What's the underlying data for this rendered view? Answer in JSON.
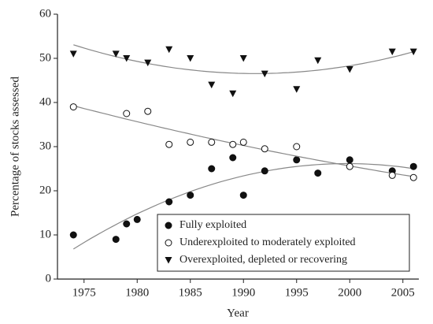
{
  "chart_data": {
    "type": "scatter",
    "xlabel": "Year",
    "ylabel": "Percentage of stocks assessed",
    "xlim": [
      1972.5,
      2006.5
    ],
    "xticks": [
      1975,
      1980,
      1985,
      1990,
      1995,
      2000,
      2005
    ],
    "ylim": [
      0,
      60
    ],
    "yticks": [
      0,
      10,
      20,
      30,
      40,
      50,
      60
    ],
    "trend": "quadratic",
    "legend": "lower right",
    "series": [
      {
        "name": "Fully exploited",
        "marker": "filled-circle",
        "color": "#111111",
        "x": [
          1974,
          1978,
          1979,
          1980,
          1983,
          1985,
          1987,
          1989,
          1990,
          1992,
          1995,
          1997,
          2000,
          2004,
          2006
        ],
        "values": [
          10,
          9,
          12.5,
          13.5,
          17.5,
          19,
          25,
          27.5,
          19,
          24.5,
          27,
          24,
          27,
          24.5,
          25.5
        ]
      },
      {
        "name": "Underexploited to moderately exploited",
        "marker": "open-circle",
        "color": "#111111",
        "x": [
          1974,
          1979,
          1981,
          1983,
          1985,
          1987,
          1989,
          1990,
          1992,
          1995,
          2000,
          2004,
          2006
        ],
        "values": [
          39,
          37.5,
          38,
          30.5,
          31,
          31,
          30.5,
          31,
          29.5,
          30,
          25.5,
          23.5,
          23
        ]
      },
      {
        "name": "Overexploited, depleted or recovering",
        "marker": "triangle-down",
        "color": "#111111",
        "x": [
          1974,
          1978,
          1979,
          1981,
          1983,
          1985,
          1987,
          1989,
          1990,
          1992,
          1995,
          1997,
          2000,
          2004,
          2006
        ],
        "values": [
          51,
          51,
          50,
          49,
          52,
          50,
          44,
          42,
          50,
          46.5,
          43,
          49.5,
          47.5,
          51.5,
          51.5
        ]
      }
    ]
  }
}
